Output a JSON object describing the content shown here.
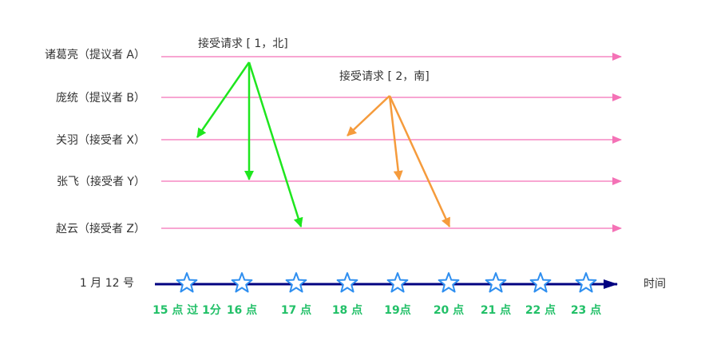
{
  "participants": [
    {
      "name": "诸葛亮（提议者 A）"
    },
    {
      "name": "庞统（提议者 B）"
    },
    {
      "name": "关羽（接受者 X）"
    },
    {
      "name": "张飞（接受者 Y）"
    },
    {
      "name": "赵云（接受者 Z）"
    }
  ],
  "requests": [
    {
      "label": "接受请求 [ 1，北]",
      "from": "诸葛亮（提议者 A）",
      "to": [
        "关羽（接受者 X）",
        "张飞（接受者 Y）",
        "赵云（接受者 Z）"
      ]
    },
    {
      "label": "接受请求 [ 2，南]",
      "from": "庞统（提议者 B）",
      "to": [
        "关羽（接受者 X）",
        "张飞（接受者 Y）",
        "赵云（接受者 Z）"
      ]
    }
  ],
  "timeline": {
    "date_label": "1 月 12 号",
    "axis_label": "时间",
    "ticks": [
      "15 点 过 1分",
      "16 点",
      "17 点",
      "18 点",
      "19点",
      "20 点",
      "21 点",
      "22 点",
      "23 点"
    ]
  },
  "colors": {
    "lifeline": "#f472b6",
    "request_1": "#1ee61e",
    "request_2": "#f59b3c",
    "axis": "#000080",
    "star_stroke": "#2f8ff0",
    "tick_text": "#22c068"
  }
}
